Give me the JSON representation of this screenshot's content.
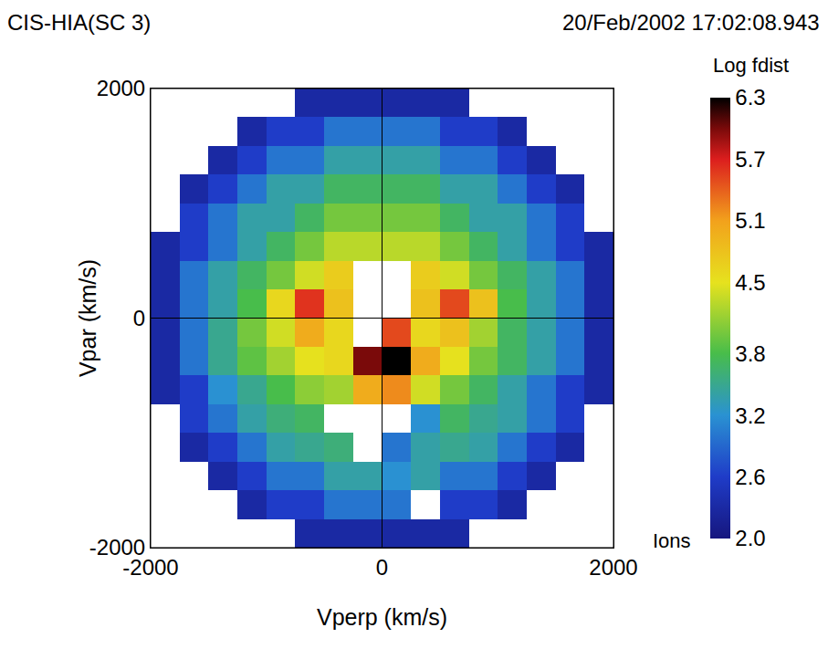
{
  "chart_data": {
    "type": "heatmap",
    "title": "CIS-HIA(SC 3)",
    "subtitle": "20/Feb/2002 17:02:08.943",
    "x_label": "Vperp (km/s)",
    "y_label": "Vpar (km/s)",
    "x": [
      -1875,
      -1625,
      -1375,
      -1125,
      -875,
      -625,
      -375,
      -125,
      125,
      375,
      625,
      875,
      1125,
      1375,
      1625,
      1875
    ],
    "y": [
      -1875,
      -1625,
      -1375,
      -1125,
      -875,
      -625,
      -375,
      -125,
      125,
      375,
      625,
      875,
      1125,
      1375,
      1625,
      1875
    ],
    "cells": [
      [
        null,
        null,
        null,
        null,
        null,
        2.3,
        2.3,
        2.3,
        2.3,
        2.3,
        2.3,
        null,
        null,
        null,
        null,
        null
      ],
      [
        null,
        null,
        null,
        2.3,
        2.6,
        2.6,
        3.0,
        3.0,
        3.0,
        null,
        2.6,
        2.6,
        2.3,
        null,
        null,
        null
      ],
      [
        null,
        null,
        2.3,
        2.6,
        3.0,
        3.0,
        3.4,
        3.4,
        3.2,
        3.4,
        3.0,
        3.0,
        2.6,
        2.3,
        null,
        null
      ],
      [
        null,
        2.3,
        2.6,
        3.0,
        3.4,
        3.5,
        3.6,
        null,
        3.0,
        3.4,
        3.5,
        3.4,
        3.0,
        2.6,
        2.3,
        null
      ],
      [
        null,
        2.6,
        3.0,
        3.4,
        3.6,
        3.7,
        null,
        null,
        null,
        3.2,
        3.7,
        3.5,
        3.4,
        3.0,
        2.6,
        null
      ],
      [
        2.3,
        2.6,
        3.2,
        3.5,
        3.8,
        4.1,
        4.2,
        5.0,
        5.2,
        4.4,
        4.0,
        3.7,
        3.4,
        3.0,
        2.6,
        2.3
      ],
      [
        2.3,
        3.0,
        3.5,
        3.9,
        4.2,
        4.5,
        4.6,
        6.0,
        6.3,
        5.0,
        4.5,
        4.0,
        3.7,
        3.4,
        3.0,
        2.3
      ],
      [
        2.3,
        3.0,
        3.5,
        4.0,
        4.4,
        5.0,
        4.6,
        null,
        5.5,
        4.6,
        4.8,
        4.2,
        3.7,
        3.4,
        3.0,
        2.3
      ],
      [
        2.3,
        3.0,
        3.4,
        3.8,
        4.6,
        5.6,
        4.8,
        null,
        null,
        4.8,
        5.5,
        4.8,
        3.8,
        3.4,
        3.0,
        2.3
      ],
      [
        2.3,
        3.0,
        3.4,
        3.7,
        4.0,
        4.4,
        4.7,
        null,
        null,
        4.7,
        4.4,
        4.0,
        3.7,
        3.4,
        3.0,
        2.3
      ],
      [
        2.3,
        2.6,
        3.0,
        3.4,
        3.7,
        4.0,
        4.3,
        4.3,
        4.3,
        4.3,
        4.0,
        3.7,
        3.4,
        3.0,
        2.6,
        2.3
      ],
      [
        null,
        2.6,
        3.0,
        3.4,
        3.4,
        3.7,
        4.0,
        4.0,
        4.0,
        4.0,
        3.7,
        3.4,
        3.4,
        3.0,
        2.6,
        null
      ],
      [
        null,
        2.3,
        2.6,
        3.0,
        3.4,
        3.4,
        3.7,
        3.7,
        3.7,
        3.7,
        3.4,
        3.4,
        3.0,
        2.6,
        2.3,
        null
      ],
      [
        null,
        null,
        2.3,
        2.6,
        3.0,
        3.0,
        3.4,
        3.4,
        3.4,
        3.4,
        3.0,
        3.0,
        2.6,
        2.3,
        null,
        null
      ],
      [
        null,
        null,
        null,
        2.3,
        2.6,
        2.6,
        3.0,
        3.0,
        3.0,
        3.0,
        2.6,
        2.6,
        2.3,
        null,
        null,
        null
      ],
      [
        null,
        null,
        null,
        null,
        null,
        2.3,
        2.3,
        2.3,
        2.3,
        2.3,
        2.3,
        null,
        null,
        null,
        null,
        null
      ]
    ],
    "xlim": [
      -2000,
      2000
    ],
    "ylim": [
      -2000,
      2000
    ],
    "xticks": [
      -2000,
      0,
      2000
    ],
    "yticks": [
      -2000,
      0,
      2000
    ],
    "grid": true,
    "colorbar": {
      "title": "Log fdist",
      "label": "Ions",
      "range": [
        2,
        6.3
      ],
      "ticks": [
        {
          "value": 2,
          "label": "2.0"
        },
        2.6,
        3.2,
        3.8,
        4.5,
        5.1,
        5.7,
        6.3
      ]
    }
  }
}
